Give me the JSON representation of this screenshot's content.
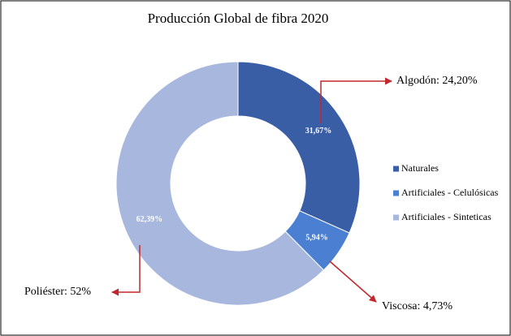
{
  "chart_data": {
    "type": "donut",
    "title": "Producción Global de fibra 2020",
    "categories": [
      "Naturales",
      "Artificiales - Celulósicas",
      "Artificiales - Sinteticas"
    ],
    "values": [
      31.67,
      5.94,
      62.39
    ],
    "value_labels": [
      "31,67%",
      "5,94%",
      "62,39%"
    ],
    "colors": [
      "#3a5ea6",
      "#4a7fd2",
      "#a8b7dd"
    ],
    "legend": "right",
    "annotations": [
      "Algodón: 24,20%",
      "Viscosa: 4,73%",
      "Poliéster: 52%"
    ]
  }
}
